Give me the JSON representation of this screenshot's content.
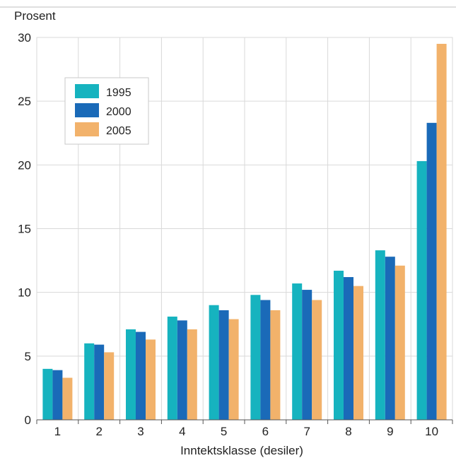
{
  "chart_data": {
    "type": "bar",
    "ylabel": "Prosent",
    "xlabel": "Inntektsklasse (desiler)",
    "ylim": [
      0,
      30
    ],
    "yticks": [
      "0",
      "5",
      "10",
      "15",
      "20",
      "25",
      "30"
    ],
    "categories": [
      "1",
      "2",
      "3",
      "4",
      "5",
      "6",
      "7",
      "8",
      "9",
      "10"
    ],
    "series": [
      {
        "name": "1995",
        "color": "#16b3bf",
        "values": [
          4.0,
          6.0,
          7.1,
          8.1,
          9.0,
          9.8,
          10.7,
          11.7,
          13.3,
          20.3
        ]
      },
      {
        "name": "2000",
        "color": "#1a6ab8",
        "values": [
          3.9,
          5.9,
          6.9,
          7.8,
          8.6,
          9.4,
          10.2,
          11.2,
          12.8,
          23.3
        ]
      },
      {
        "name": "2005",
        "color": "#f2b26b",
        "values": [
          3.3,
          5.3,
          6.3,
          7.1,
          7.9,
          8.6,
          9.4,
          10.5,
          12.1,
          29.5
        ]
      }
    ],
    "grid": true,
    "legend_position": "top-left"
  }
}
